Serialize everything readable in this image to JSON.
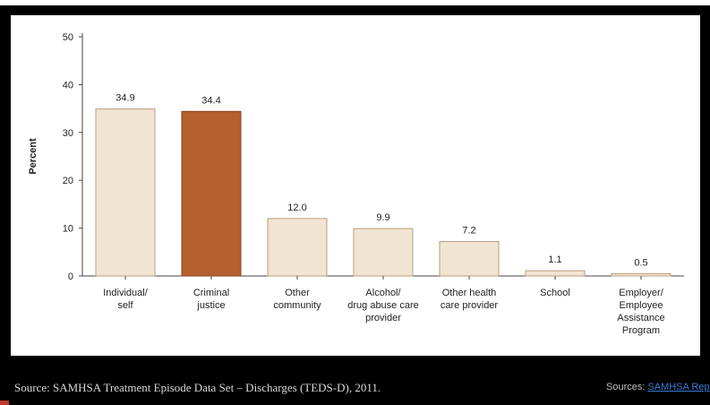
{
  "chart_data": {
    "type": "bar",
    "ylabel": "Percent",
    "ylim": [
      0,
      50
    ],
    "yticks": [
      0,
      10,
      20,
      30,
      40,
      50
    ],
    "categories": [
      [
        "Individual/",
        "self"
      ],
      [
        "Criminal",
        "justice"
      ],
      [
        "Other",
        "community"
      ],
      [
        "Alcohol/",
        "drug abuse care",
        "provider"
      ],
      [
        "Other health",
        "care provider"
      ],
      [
        "School"
      ],
      [
        "Employer/",
        "Employee",
        "Assistance",
        "Program"
      ]
    ],
    "values": [
      34.9,
      34.4,
      12.0,
      9.9,
      7.2,
      1.1,
      0.5
    ],
    "value_labels": [
      "34.9",
      "34.4",
      "12.0",
      "9.9",
      "7.2",
      "1.1",
      "0.5"
    ],
    "colors": {
      "default_fill": "#f2e4d3",
      "default_stroke": "#b89c7c",
      "highlight_fill": "#b55f2e",
      "highlight_stroke": "#8a4420",
      "highlight_index": 1
    },
    "grid": false
  },
  "footer": {
    "source_text": "Source: SAMHSA Treatment Episode Data Set – Discharges (TEDS-D), 2011.",
    "credit_prefix": "Sources: ",
    "credit_link": "SAMHSA Rep"
  }
}
